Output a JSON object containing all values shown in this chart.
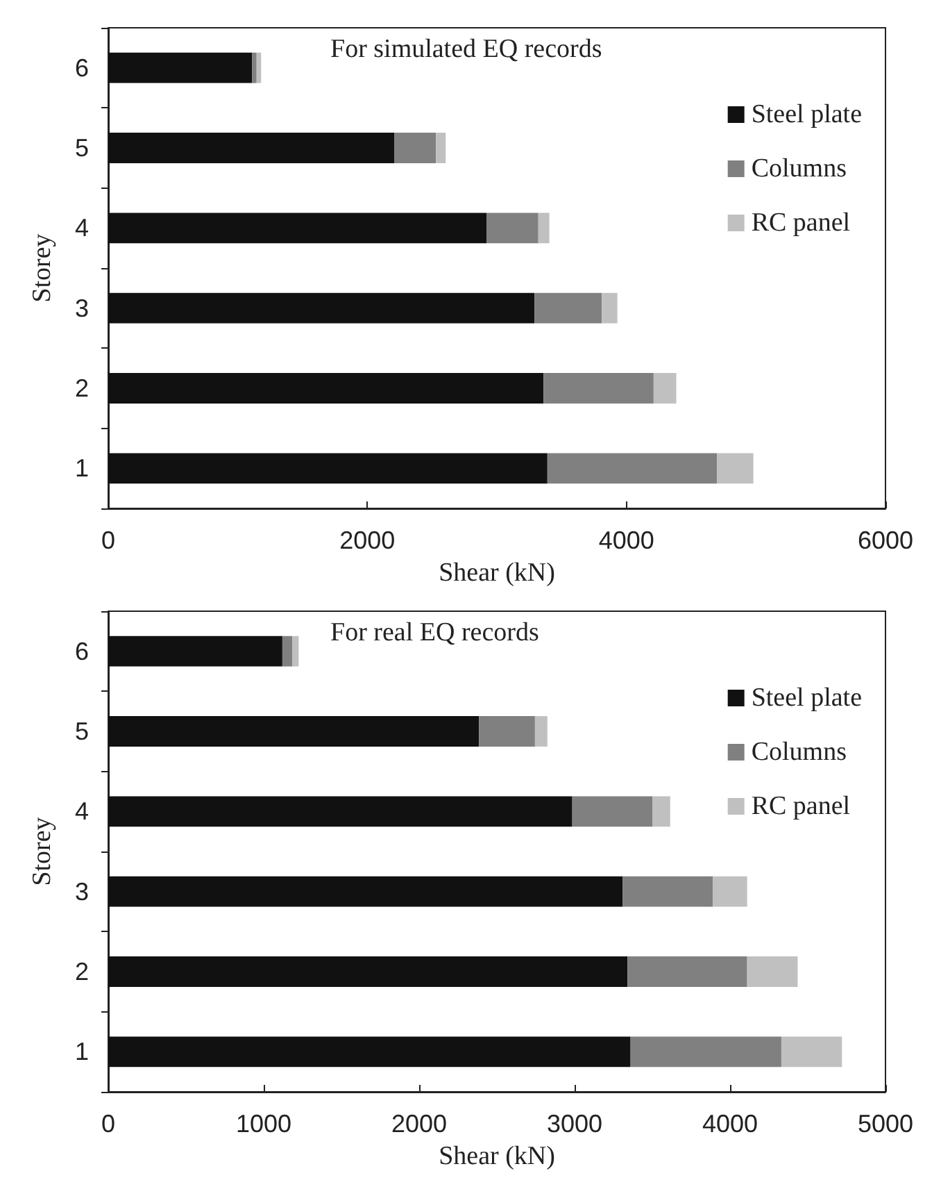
{
  "chart_data": [
    {
      "type": "bar",
      "orientation": "horizontal",
      "stacked": true,
      "ylabel": "Storey",
      "xlabel": "Shear (kN)",
      "annotations": [
        "For simulated EQ records"
      ],
      "categories": [
        "6",
        "5",
        "4",
        "3",
        "2",
        "1"
      ],
      "xlim": [
        0,
        6000
      ],
      "xticks": [
        0,
        2000,
        4000,
        6000
      ],
      "grid": false,
      "legend": "right",
      "series": [
        {
          "name": "Steel plate",
          "color": "#111111",
          "values": [
            1110,
            2210,
            2920,
            3290,
            3360,
            3390
          ]
        },
        {
          "name": "Columns",
          "color": "#808080",
          "values": [
            35,
            320,
            400,
            520,
            850,
            1310
          ]
        },
        {
          "name": "RC panel",
          "color": "#c0c0c0",
          "values": [
            35,
            75,
            85,
            120,
            175,
            280
          ]
        }
      ]
    },
    {
      "type": "bar",
      "orientation": "horizontal",
      "stacked": true,
      "ylabel": "Storey",
      "xlabel": "Shear (kN)",
      "annotations": [
        "For real EQ records"
      ],
      "categories": [
        "6",
        "5",
        "4",
        "3",
        "2",
        "1"
      ],
      "xlim": [
        0,
        5000
      ],
      "xticks": [
        0,
        1000,
        2000,
        3000,
        4000,
        5000
      ],
      "grid": false,
      "legend": "right",
      "series": [
        {
          "name": "Steel plate",
          "color": "#111111",
          "values": [
            1120,
            2385,
            2985,
            3310,
            3340,
            3360
          ]
        },
        {
          "name": "Columns",
          "color": "#808080",
          "values": [
            65,
            360,
            515,
            580,
            770,
            970
          ]
        },
        {
          "name": "RC panel",
          "color": "#c0c0c0",
          "values": [
            40,
            80,
            115,
            220,
            325,
            390
          ]
        }
      ]
    }
  ]
}
